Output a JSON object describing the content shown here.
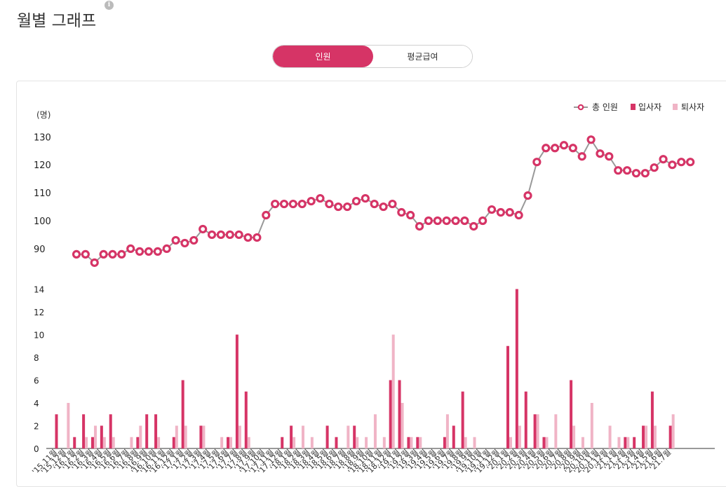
{
  "page": {
    "title": "월별 그래프",
    "info_icon": "info-icon"
  },
  "tabs": [
    {
      "label": "인원",
      "active": true
    },
    {
      "label": "평균급여",
      "active": false
    }
  ],
  "colors": {
    "accent": "#d63466",
    "hires": "#d63466",
    "leavers": "#f0b4c6",
    "line": "#999999"
  },
  "chart_data": {
    "type": "line+bar",
    "unit_label": "(명)",
    "legend": [
      "총 인원",
      "입사자",
      "퇴사자"
    ],
    "legend_position": "top-right",
    "categories": [
      "'15.11월",
      "'15.12월",
      "'16.1월",
      "'16.2월",
      "'16.3월",
      "'16.4월",
      "'16.5월",
      "'16.6월",
      "'16.7월",
      "'16.8월",
      "'16.9월",
      "'16.10월",
      "'16.11월",
      "'16.12월",
      "'17.1월",
      "'17.2월",
      "'17.3월",
      "'17.4월",
      "'17.5월",
      "'17.6월",
      "'17.7월",
      "'17.8월",
      "'17.9월",
      "'17.10월",
      "'17.11월",
      "'17.12월",
      "'18.1월",
      "'18.2월",
      "'18.3월",
      "'18.4월",
      "'18.5월",
      "'18.6월",
      "'18.7월",
      "'18.8월",
      "'18.9월",
      "'18.10월",
      "'18.11월",
      "'18.12월",
      "'19.1월",
      "'19.2월",
      "'19.3월",
      "'19.4월",
      "'19.5월",
      "'19.6월",
      "'19.7월",
      "'19.8월",
      "'19.9월",
      "'19.10월",
      "'19.11월",
      "'19.12월",
      "'20.1월",
      "'20.2월",
      "'20.3월",
      "'20.4월",
      "'20.5월",
      "'20.6월",
      "'20.7월",
      "'20.8월",
      "'20.9월",
      "'20.10월",
      "'20.11월",
      "'20.12월",
      "'21.1월",
      "'21.2월",
      "'21.3월",
      "'21.4월",
      "'21.5월",
      "'21.6월",
      "'21.7월"
    ],
    "total": [
      88,
      88,
      85,
      88,
      88,
      88,
      90,
      89,
      89,
      89,
      90,
      93,
      92,
      93,
      97,
      95,
      95,
      95,
      95,
      94,
      94,
      102,
      106,
      106,
      106,
      106,
      107,
      108,
      106,
      105,
      105,
      107,
      108,
      106,
      105,
      106,
      103,
      102,
      98,
      100,
      100,
      100,
      100,
      100,
      98,
      100,
      104,
      103,
      103,
      102,
      109,
      121,
      126,
      126,
      127,
      126,
      123,
      129,
      124,
      123,
      118,
      118,
      117,
      117,
      119,
      122,
      120,
      121,
      121
    ],
    "hires": [
      3,
      0,
      1,
      3,
      1,
      2,
      3,
      0,
      0,
      1,
      3,
      3,
      0,
      1,
      6,
      0,
      2,
      0,
      0,
      1,
      10,
      5,
      0,
      0,
      0,
      1,
      2,
      0,
      0,
      0,
      2,
      1,
      0,
      2,
      0,
      0,
      0,
      6,
      6,
      1,
      1,
      0,
      0,
      1,
      2,
      5,
      0,
      0,
      0,
      0,
      9,
      14,
      5,
      3,
      1,
      0,
      0,
      6,
      0,
      0,
      0,
      0,
      0,
      1,
      1,
      2,
      5,
      0,
      2
    ],
    "leavers": [
      0,
      4,
      0,
      1,
      2,
      1,
      1,
      0,
      1,
      2,
      0,
      1,
      0,
      2,
      2,
      0,
      2,
      0,
      1,
      1,
      2,
      1,
      0,
      0,
      0,
      0,
      1,
      2,
      1,
      0,
      0,
      0,
      2,
      1,
      1,
      3,
      1,
      10,
      4,
      1,
      1,
      0,
      0,
      3,
      0,
      1,
      1,
      0,
      0,
      0,
      1,
      2,
      0,
      3,
      1,
      3,
      0,
      2,
      1,
      4,
      0,
      2,
      1,
      1,
      0,
      2,
      2,
      0,
      3
    ],
    "line_axis": {
      "ticks": [
        90,
        100,
        110,
        120,
        130
      ]
    },
    "bar_axis": {
      "ticks": [
        0,
        2,
        4,
        6,
        8,
        10,
        12,
        14
      ]
    },
    "grid": false
  }
}
